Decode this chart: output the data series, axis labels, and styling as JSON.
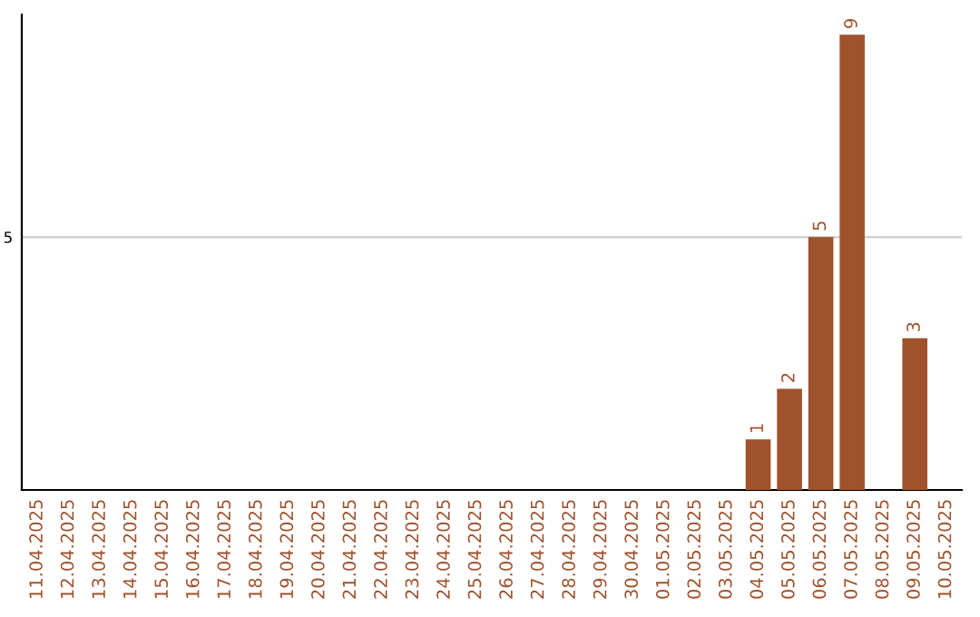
{
  "chart_data": {
    "type": "bar",
    "categories": [
      "11.04.2025",
      "12.04.2025",
      "13.04.2025",
      "14.04.2025",
      "15.04.2025",
      "16.04.2025",
      "17.04.2025",
      "18.04.2025",
      "19.04.2025",
      "20.04.2025",
      "21.04.2025",
      "22.04.2025",
      "23.04.2025",
      "24.04.2025",
      "25.04.2025",
      "26.04.2025",
      "27.04.2025",
      "28.04.2025",
      "29.04.2025",
      "30.04.2025",
      "01.05.2025",
      "02.05.2025",
      "03.05.2025",
      "04.05.2025",
      "05.05.2025",
      "06.05.2025",
      "07.05.2025",
      "08.05.2025",
      "09.05.2025",
      "10.05.2025"
    ],
    "values": [
      null,
      null,
      null,
      null,
      null,
      null,
      null,
      null,
      null,
      null,
      null,
      null,
      null,
      null,
      null,
      null,
      null,
      null,
      null,
      null,
      null,
      null,
      null,
      1,
      2,
      5,
      9,
      null,
      3,
      null
    ],
    "color": "#a0522d",
    "ylim": [
      0,
      9.4
    ],
    "yticks": [
      5
    ],
    "grid": "y",
    "data_labels": true
  }
}
